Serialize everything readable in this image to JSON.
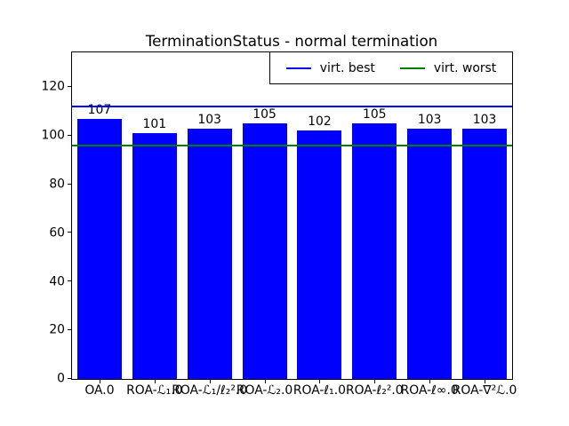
{
  "chart_data": {
    "type": "bar",
    "title": "TerminationStatus - normal termination",
    "categories": [
      "OA.0",
      "ROA-ℒ₁.0",
      "ROA-ℒ₁/ℓ₂².0",
      "ROA-ℒ₂.0",
      "ROA-ℓ₁.0",
      "ROA-ℓ₂².0",
      "ROA-ℓ∞.0",
      "ROA-∇²ℒ.0"
    ],
    "values": [
      107,
      101,
      103,
      105,
      102,
      105,
      103,
      103
    ],
    "value_labels": [
      "107",
      "101",
      "103",
      "105",
      "102",
      "105",
      "103",
      "103"
    ],
    "bar_color": "#0000ff",
    "yticks": [
      0,
      20,
      40,
      60,
      80,
      100,
      120
    ],
    "ylim": [
      0,
      134.2
    ],
    "xlabel": "",
    "ylabel": "",
    "grid": false,
    "reference_lines": [
      {
        "name": "virt. best",
        "value": 112,
        "color": "#0000ff"
      },
      {
        "name": "virt. worst",
        "value": 96,
        "color": "#008000"
      }
    ],
    "legend": {
      "position": "upper right",
      "entries": [
        {
          "label": "virt. best",
          "color": "#0000ff"
        },
        {
          "label": "virt. worst",
          "color": "#008000"
        }
      ]
    }
  }
}
